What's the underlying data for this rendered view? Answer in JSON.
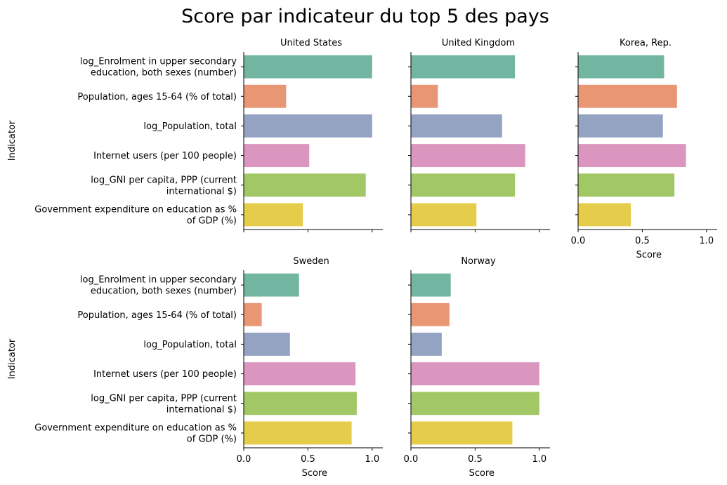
{
  "chart_data": {
    "type": "bar",
    "orientation": "horizontal",
    "title": "Score par indicateur du top 5 des pays",
    "xlabel": "Score",
    "ylabel": "Indicator",
    "xlim": [
      0,
      1.05
    ],
    "xticks": [
      {
        "value": 0.0,
        "label": "0.0"
      },
      {
        "value": 0.5,
        "label": "0.5"
      },
      {
        "value": 1.0,
        "label": "1.0"
      }
    ],
    "grid": false,
    "categories": [
      [
        "log_Enrolment in upper secondary",
        "education, both sexes (number)"
      ],
      [
        "Population, ages 15-64 (% of total)"
      ],
      [
        "log_Population, total"
      ],
      [
        "Internet users (per 100 people)"
      ],
      [
        "log_GNI per capita, PPP (current",
        "international $)"
      ],
      [
        "Government expenditure on education as %",
        "of GDP (%)"
      ]
    ],
    "colors": [
      "#72b6a1",
      "#e99675",
      "#95a3c3",
      "#db96c0",
      "#a2c865",
      "#e5cc4a"
    ],
    "panels": [
      {
        "name": "United States",
        "values": [
          1.0,
          0.33,
          1.0,
          0.51,
          0.95,
          0.46
        ]
      },
      {
        "name": "United Kingdom",
        "values": [
          0.81,
          0.21,
          0.71,
          0.89,
          0.81,
          0.51
        ]
      },
      {
        "name": "Korea, Rep.",
        "values": [
          0.67,
          0.77,
          0.66,
          0.84,
          0.75,
          0.41
        ]
      },
      {
        "name": "Sweden",
        "values": [
          0.43,
          0.14,
          0.36,
          0.87,
          0.88,
          0.84
        ]
      },
      {
        "name": "Norway",
        "values": [
          0.31,
          0.3,
          0.24,
          1.0,
          1.0,
          0.79
        ]
      }
    ]
  }
}
